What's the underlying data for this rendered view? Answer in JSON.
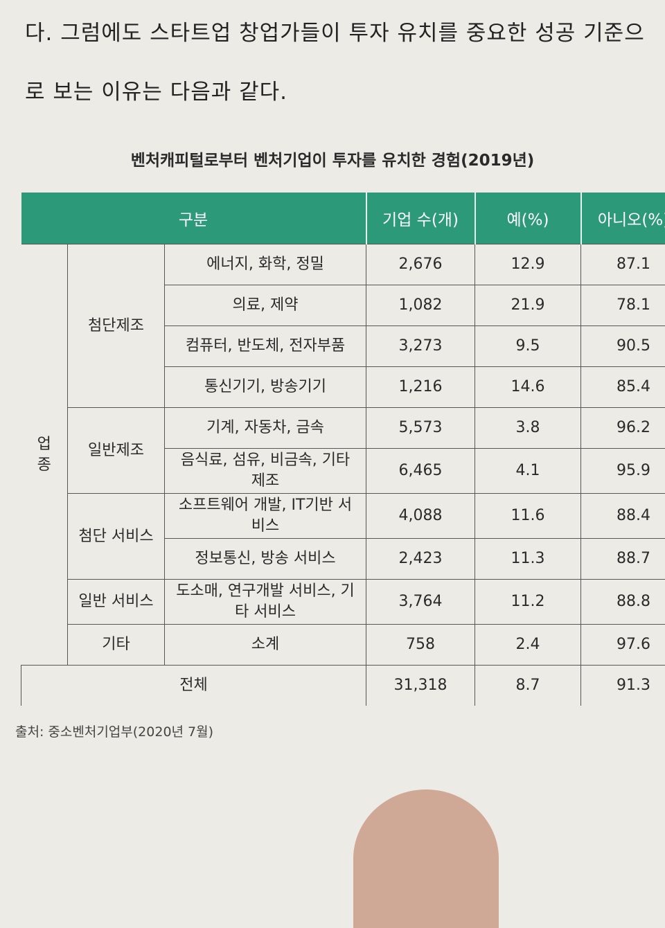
{
  "body_text": {
    "lines": [
      "다. 그럼에도 스타트업 창업가들이 투자 유치를 중요한 성공 기준으",
      "로 보는 이유는 다음과 같다."
    ]
  },
  "table": {
    "title": "벤처캐피털로부터 벤처기업이 투자를 유치한 경험(2019년)",
    "header": [
      "구분",
      "기업 수(개)",
      "예(%)",
      "아니오(%)"
    ],
    "sector": "업종",
    "groups": [
      {
        "label": "첨단제조",
        "items": [
          {
            "label": "에너지, 화학, 정밀",
            "companies": "2,676",
            "yes": "12.9",
            "no": "87.1"
          },
          {
            "label": "의료, 제약",
            "companies": "1,082",
            "yes": "21.9",
            "no": "78.1"
          },
          {
            "label": "컴퓨터, 반도체, 전자부품",
            "companies": "3,273",
            "yes": "9.5",
            "no": "90.5"
          },
          {
            "label": "통신기기, 방송기기",
            "companies": "1,216",
            "yes": "14.6",
            "no": "85.4"
          }
        ]
      },
      {
        "label": "일반제조",
        "items": [
          {
            "label": "기계, 자동차, 금속",
            "companies": "5,573",
            "yes": "3.8",
            "no": "96.2"
          },
          {
            "label": "음식료, 섬유, 비금속, 기타 제조",
            "companies": "6,465",
            "yes": "4.1",
            "no": "95.9"
          }
        ]
      },
      {
        "label": "첨단 서비스",
        "items": [
          {
            "label": "소프트웨어 개발, IT기반 서비스",
            "companies": "4,088",
            "yes": "11.6",
            "no": "88.4"
          },
          {
            "label": "정보통신, 방송 서비스",
            "companies": "2,423",
            "yes": "11.3",
            "no": "88.7"
          }
        ]
      },
      {
        "label": "일반 서비스",
        "items": [
          {
            "label": "도소매, 연구개발 서비스, 기타 서비스",
            "companies": "3,764",
            "yes": "11.2",
            "no": "88.8"
          }
        ]
      },
      {
        "label": "기타",
        "items": [
          {
            "label": "소계",
            "companies": "758",
            "yes": "2.4",
            "no": "97.6"
          }
        ]
      }
    ],
    "total": {
      "label": "전체",
      "companies": "31,318",
      "yes": "8.7",
      "no": "91.3"
    },
    "source": "출처: 중소벤처기업부(2020년 7월)"
  }
}
